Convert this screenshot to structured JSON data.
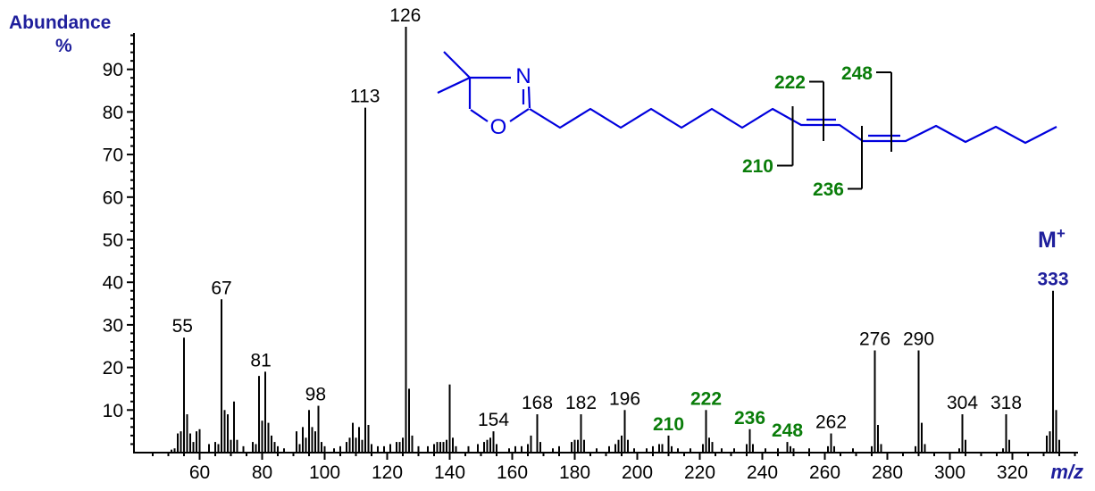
{
  "title": {
    "line1": "Abundance",
    "line2": "%"
  },
  "colors": {
    "navy": "#1f1f9c",
    "structure_blue": "#0000dd",
    "fragment_green": "#0a7d0a",
    "axis_black": "#000000",
    "background": "#ffffff"
  },
  "axes": {
    "x": {
      "label": "m/z",
      "range_mz": [
        39,
        341
      ],
      "major_tick_values": [
        60,
        80,
        100,
        120,
        140,
        160,
        180,
        200,
        220,
        240,
        260,
        280,
        300,
        320
      ],
      "minor_tick_step": 5
    },
    "y": {
      "range_pct": [
        0,
        100
      ],
      "major_tick_values": [
        10,
        20,
        30,
        40,
        50,
        60,
        70,
        80,
        90
      ],
      "minor_tick_step": 2
    }
  },
  "molecule": {
    "atom_labels": [
      {
        "text": "N"
      },
      {
        "text": "O"
      }
    ],
    "fragment_markers": [
      {
        "text": "210"
      },
      {
        "text": "222"
      },
      {
        "text": "236"
      },
      {
        "text": "248"
      }
    ]
  },
  "molecular_ion": {
    "symbol": "M",
    "superscript": "+",
    "mz_label": "333"
  },
  "chart_data": {
    "type": "bar",
    "title": "Abundance %",
    "xlabel": "m/z",
    "ylabel": "Abundance %",
    "xlim": [
      39,
      341
    ],
    "ylim": [
      0,
      100
    ],
    "legend": "none",
    "grid": false,
    "x": [
      51,
      52,
      53,
      54,
      55,
      56,
      57,
      58,
      59,
      60,
      63,
      65,
      66,
      67,
      68,
      69,
      70,
      71,
      72,
      74,
      77,
      78,
      79,
      80,
      81,
      82,
      83,
      84,
      85,
      87,
      91,
      92,
      93,
      94,
      95,
      96,
      97,
      98,
      99,
      100,
      103,
      105,
      107,
      108,
      109,
      110,
      111,
      112,
      113,
      114,
      115,
      117,
      119,
      121,
      123,
      124,
      125,
      126,
      127,
      128,
      130,
      133,
      135,
      136,
      137,
      138,
      139,
      140,
      141,
      142,
      146,
      149,
      151,
      152,
      153,
      154,
      155,
      159,
      161,
      163,
      165,
      166,
      168,
      169,
      173,
      175,
      179,
      180,
      181,
      182,
      183,
      187,
      191,
      193,
      194,
      195,
      196,
      197,
      199,
      203,
      205,
      207,
      208,
      210,
      211,
      213,
      217,
      221,
      222,
      223,
      224,
      227,
      231,
      235,
      236,
      237,
      241,
      245,
      248,
      249,
      250,
      255,
      261,
      262,
      263,
      269,
      275,
      276,
      277,
      278,
      289,
      290,
      291,
      292,
      303,
      304,
      305,
      317,
      318,
      319,
      331,
      332,
      333,
      334,
      335
    ],
    "values": [
      0.7,
      1,
      4.5,
      5,
      27,
      9,
      4.5,
      2.5,
      5,
      5.5,
      2,
      2.5,
      2,
      36,
      10,
      9,
      3,
      12,
      3,
      1.5,
      2.5,
      2,
      18,
      7.5,
      19,
      7,
      4,
      2.5,
      1.5,
      1,
      5,
      2,
      6,
      3.5,
      10,
      6,
      5,
      11,
      2.5,
      1.5,
      1,
      1.5,
      2.5,
      3.5,
      7,
      3.5,
      6,
      3,
      81,
      6.5,
      2,
      1.5,
      1.5,
      2,
      2.5,
      2.5,
      3.5,
      100,
      15,
      4,
      1.5,
      1.5,
      2,
      2.5,
      2.5,
      2.5,
      3,
      16,
      3.5,
      1.5,
      1.5,
      2,
      2.5,
      3,
      3.5,
      5,
      2,
      1,
      1.5,
      1.5,
      2,
      4,
      9,
      2.5,
      1,
      1.5,
      2.5,
      3,
      3,
      9,
      3,
      1,
      1.5,
      2,
      3,
      4,
      10,
      3,
      1,
      1,
      1.5,
      2,
      2,
      4,
      1.5,
      1,
      1,
      2,
      10,
      3.5,
      2.5,
      1,
      1,
      2,
      5.5,
      2,
      1,
      1,
      2.5,
      1.5,
      1,
      1,
      1.5,
      4.5,
      1.5,
      1,
      1.5,
      24,
      6.5,
      2,
      1.5,
      24,
      7,
      2,
      1,
      9,
      3,
      1,
      9,
      3,
      4,
      5,
      38,
      10,
      3
    ],
    "peak_labels": [
      {
        "text": "55",
        "anchor_mz": 54.5,
        "height": 27,
        "color": "black"
      },
      {
        "text": "67",
        "anchor_mz": 67,
        "height": 36,
        "color": "black"
      },
      {
        "text": "81",
        "anchor_mz": 79.6,
        "height": 19,
        "color": "black"
      },
      {
        "text": "98",
        "anchor_mz": 97.1,
        "height": 11,
        "color": "black"
      },
      {
        "text": "113",
        "anchor_mz": 112.9,
        "height": 81,
        "color": "black"
      },
      {
        "text": "126",
        "anchor_mz": 125.8,
        "height": 100,
        "color": "black"
      },
      {
        "text": "154",
        "anchor_mz": 154,
        "height": 5,
        "color": "black"
      },
      {
        "text": "168",
        "anchor_mz": 168,
        "height": 9,
        "color": "black"
      },
      {
        "text": "182",
        "anchor_mz": 182,
        "height": 9,
        "color": "black"
      },
      {
        "text": "196",
        "anchor_mz": 196,
        "height": 10,
        "color": "black"
      },
      {
        "text": "210",
        "anchor_mz": 210,
        "height": 4,
        "color": "green"
      },
      {
        "text": "222",
        "anchor_mz": 222,
        "height": 10,
        "color": "green"
      },
      {
        "text": "236",
        "anchor_mz": 236,
        "height": 5.5,
        "color": "green"
      },
      {
        "text": "248",
        "anchor_mz": 248,
        "height": 2.5,
        "color": "green"
      },
      {
        "text": "262",
        "anchor_mz": 262,
        "height": 4.5,
        "color": "black"
      },
      {
        "text": "276",
        "anchor_mz": 276,
        "height": 24,
        "color": "black"
      },
      {
        "text": "290",
        "anchor_mz": 290,
        "height": 24,
        "color": "black"
      },
      {
        "text": "304",
        "anchor_mz": 304,
        "height": 9,
        "color": "black"
      },
      {
        "text": "318",
        "anchor_mz": 318,
        "height": 9,
        "color": "black"
      },
      {
        "text": "333",
        "anchor_mz": 333,
        "height": 38,
        "color": "navy"
      }
    ]
  }
}
